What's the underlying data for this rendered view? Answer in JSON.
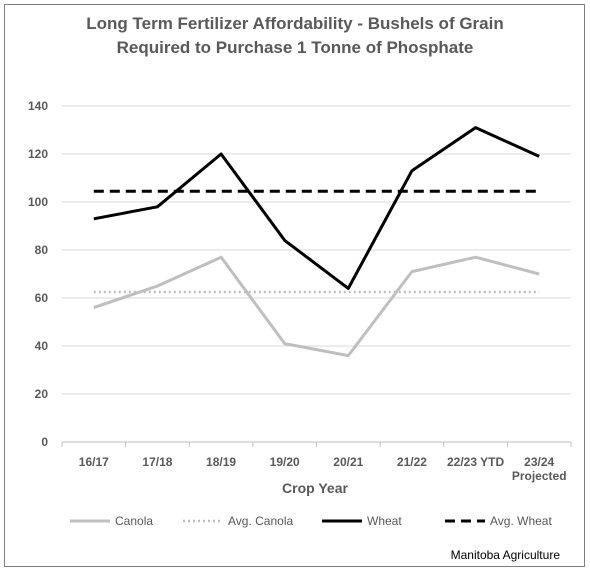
{
  "chart_data": {
    "type": "line",
    "title_line1": "Long Term Fertilizer Affordability - Bushels of Grain",
    "title_line2": "Required to Purchase 1 Tonne of Phosphate",
    "xlabel": "Crop Year",
    "ylabel": "",
    "ylim": [
      0,
      140
    ],
    "yticks": [
      0,
      20,
      40,
      60,
      80,
      100,
      120,
      140
    ],
    "grid": true,
    "legend_position": "bottom",
    "categories": [
      [
        "16/17"
      ],
      [
        "17/18"
      ],
      [
        "18/19"
      ],
      [
        "19/20"
      ],
      [
        "20/21"
      ],
      [
        "21/22"
      ],
      [
        "22/23 YTD"
      ],
      [
        "23/24",
        "Projected"
      ]
    ],
    "series": [
      {
        "name": "Canola",
        "style": "solid",
        "color": "#bfbfbf",
        "values": [
          56,
          65,
          77,
          41,
          36,
          71,
          77,
          70
        ]
      },
      {
        "name": "Avg. Canola",
        "style": "dotted",
        "color": "#bfbfbf",
        "values": [
          62.5,
          62.5,
          62.5,
          62.5,
          62.5,
          62.5,
          62.5,
          62.5
        ]
      },
      {
        "name": "Wheat",
        "style": "solid",
        "color": "#000000",
        "values": [
          93,
          98,
          120,
          84,
          64,
          113,
          131,
          119
        ]
      },
      {
        "name": "Avg. Wheat",
        "style": "dashed",
        "color": "#000000",
        "values": [
          104.5,
          104.5,
          104.5,
          104.5,
          104.5,
          104.5,
          104.5,
          104.5
        ]
      }
    ]
  },
  "source": "Manitoba Agriculture"
}
